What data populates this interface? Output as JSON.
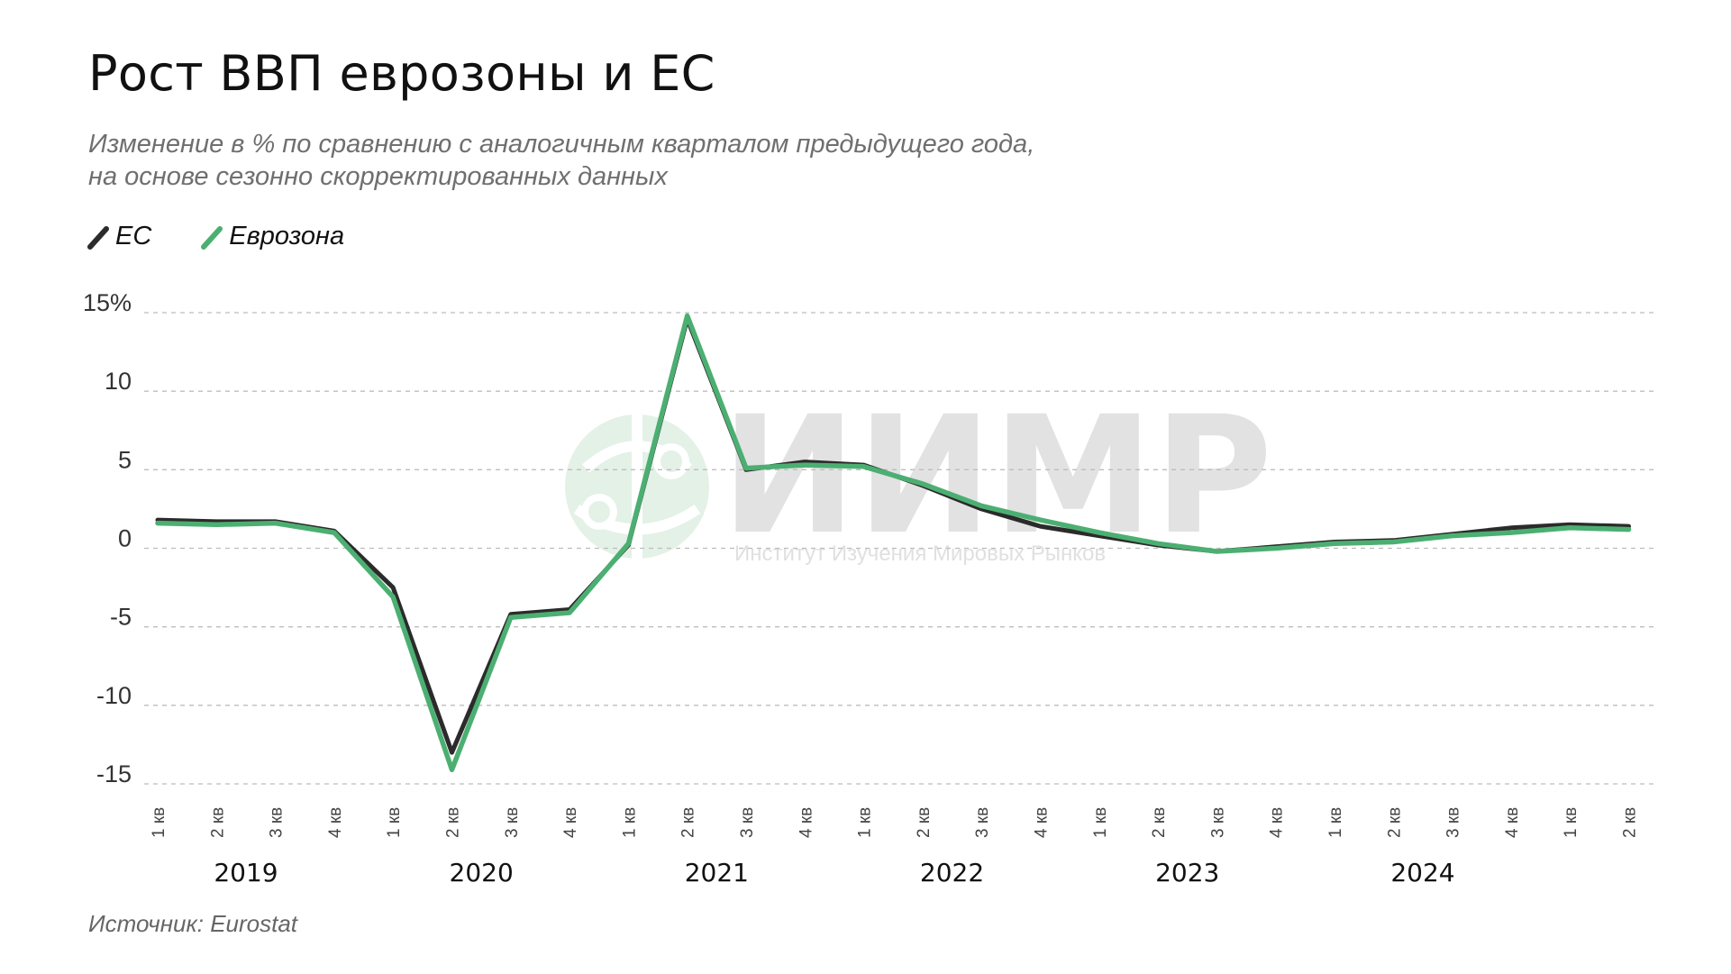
{
  "title": "Рост ВВП еврозоны и ЕС",
  "subtitle_lines": [
    "Изменение в % по сравнению с аналогичным кварталом предыдущего года,",
    "на основе сезонно скорректированных данных"
  ],
  "source": "Источник: Eurostat",
  "watermark": {
    "name": "ИИМР",
    "subtitle": "Институт Изучения Мировых Рынков"
  },
  "colors": {
    "eu": "#2b2b2b",
    "eurozone": "#4caf72",
    "grid": "#bdbdbd",
    "watermark_gray": "#e2e2e2",
    "watermark_green": "#e3f1e7"
  },
  "chart_data": {
    "type": "line",
    "y_tick_labels": [
      "15%",
      "10",
      "5",
      "0",
      "-5",
      "-10",
      "-15"
    ],
    "y_ticks": [
      15,
      10,
      5,
      0,
      -5,
      -10,
      -15
    ],
    "ylim": [
      -15,
      15
    ],
    "grid": true,
    "legend_position": "top-left",
    "categories": [
      "1 кв",
      "2 кв",
      "3 кв",
      "4 кв",
      "1 кв",
      "2 кв",
      "3 кв",
      "4 кв",
      "1 кв",
      "2 кв",
      "3 кв",
      "4 кв",
      "1 кв",
      "2 кв",
      "3 кв",
      "4 кв",
      "1 кв",
      "2 кв",
      "3 кв",
      "4 кв",
      "1 кв",
      "2 кв",
      "3 кв",
      "4 кв",
      "1 кв",
      "2 кв"
    ],
    "years": [
      {
        "label": "2019",
        "start": 0,
        "end": 3
      },
      {
        "label": "2020",
        "start": 4,
        "end": 7
      },
      {
        "label": "2021",
        "start": 8,
        "end": 11
      },
      {
        "label": "2022",
        "start": 12,
        "end": 15
      },
      {
        "label": "2023",
        "start": 16,
        "end": 19
      },
      {
        "label": "2024",
        "start": 20,
        "end": 23
      }
    ],
    "series": [
      {
        "name": "ЕС",
        "color": "#2b2b2b",
        "values": [
          1.8,
          1.7,
          1.7,
          1.1,
          -2.5,
          -13.0,
          -4.2,
          -3.9,
          0.2,
          14.6,
          5.0,
          5.5,
          5.3,
          4.0,
          2.5,
          1.4,
          0.8,
          0.2,
          -0.2,
          0.1,
          0.4,
          0.5,
          0.9,
          1.3,
          1.5,
          1.4
        ]
      },
      {
        "name": "Еврозона",
        "color": "#4caf72",
        "values": [
          1.6,
          1.5,
          1.6,
          1.0,
          -3.1,
          -14.1,
          -4.4,
          -4.1,
          0.3,
          14.8,
          5.1,
          5.3,
          5.2,
          4.1,
          2.7,
          1.8,
          1.0,
          0.3,
          -0.2,
          0.0,
          0.3,
          0.4,
          0.8,
          1.0,
          1.3,
          1.2
        ]
      }
    ]
  }
}
